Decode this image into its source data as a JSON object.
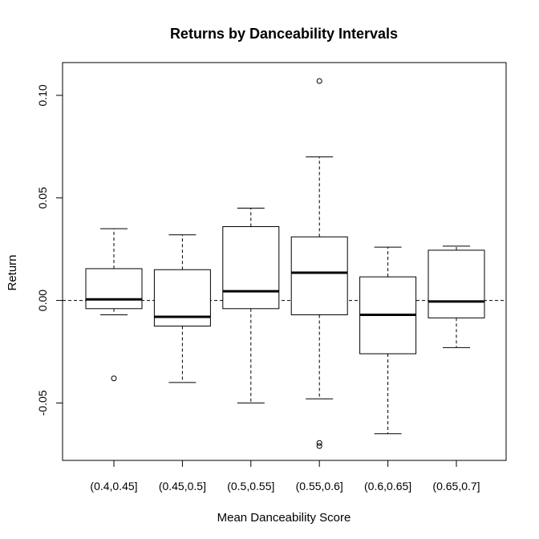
{
  "chart_data": {
    "type": "box",
    "title": "Returns by Danceability Intervals",
    "xlabel": "Mean Danceability Score",
    "ylabel": "Return",
    "ylim": [
      -0.078,
      0.116
    ],
    "yticks": [
      -0.05,
      0.0,
      0.05,
      0.1
    ],
    "ytick_labels": [
      "-0.05",
      "0.00",
      "0.05",
      "0.10"
    ],
    "reference_line": {
      "y": 0,
      "style": "dashed"
    },
    "categories": [
      "(0.4,0.45]",
      "(0.45,0.5]",
      "(0.5,0.55]",
      "(0.55,0.6]",
      "(0.6,0.65]",
      "(0.65,0.7]"
    ],
    "boxes": [
      {
        "category": "(0.4,0.45]",
        "whisker_low": -0.007,
        "q1": -0.004,
        "median": 0.0005,
        "q3": 0.0155,
        "whisker_high": 0.035,
        "outliers": [
          -0.038
        ]
      },
      {
        "category": "(0.45,0.5]",
        "whisker_low": -0.04,
        "q1": -0.0125,
        "median": -0.008,
        "q3": 0.015,
        "whisker_high": 0.032,
        "outliers": []
      },
      {
        "category": "(0.5,0.55]",
        "whisker_low": -0.05,
        "q1": -0.004,
        "median": 0.0045,
        "q3": 0.036,
        "whisker_high": 0.045,
        "outliers": []
      },
      {
        "category": "(0.55,0.6]",
        "whisker_low": -0.048,
        "q1": -0.007,
        "median": 0.0135,
        "q3": 0.031,
        "whisker_high": 0.07,
        "outliers": [
          0.107,
          -0.0695,
          -0.071
        ]
      },
      {
        "category": "(0.6,0.65]",
        "whisker_low": -0.065,
        "q1": -0.026,
        "median": -0.007,
        "q3": 0.0115,
        "whisker_high": 0.026,
        "outliers": []
      },
      {
        "category": "(0.65,0.7]",
        "whisker_low": -0.023,
        "q1": -0.0085,
        "median": -0.0005,
        "q3": 0.0245,
        "whisker_high": 0.0265,
        "outliers": []
      }
    ]
  }
}
